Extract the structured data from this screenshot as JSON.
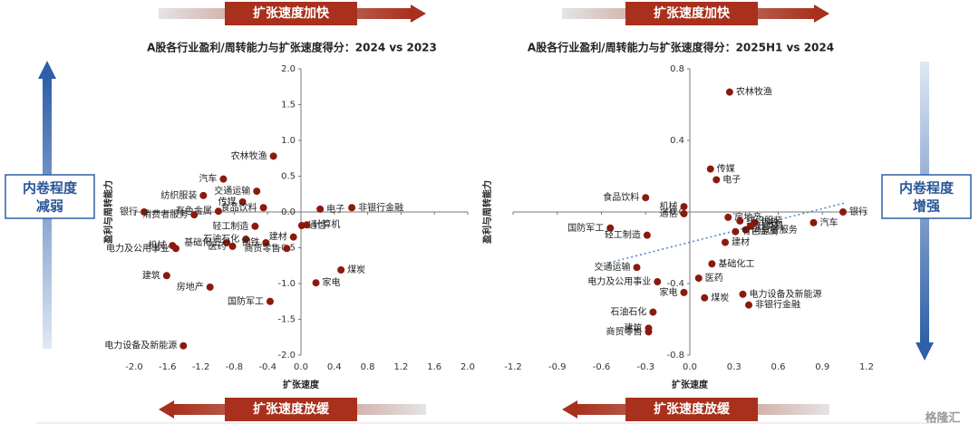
{
  "banners": {
    "top": "扩张速度加快",
    "bottom": "扩张速度放缓",
    "left": [
      "内卷程度",
      "减弱"
    ],
    "right": [
      "内卷程度",
      "增强"
    ],
    "watermark": "格隆汇"
  },
  "chart_data": [
    {
      "type": "scatter",
      "title": "A股各行业盈利/周转能力与扩张速度得分：2024 vs 2023",
      "xlabel": "扩张速度",
      "ylabel": "盈利与周转能力",
      "color": "#8b1a0e",
      "xlim": [
        -2,
        2
      ],
      "ylim": [
        -2,
        2
      ],
      "xticks": [
        {
          "value": -2,
          "label": "-2.0"
        },
        -1.6,
        -1.2,
        -0.8,
        -0.4,
        {
          "value": 0,
          "label": "0.0"
        },
        0.4,
        0.8,
        1.2,
        1.6,
        {
          "value": 2,
          "label": "2.0"
        }
      ],
      "yticks": [
        {
          "value": 2,
          "label": "2.0"
        },
        1.5,
        {
          "value": 1,
          "label": "1.0"
        },
        0.5,
        {
          "value": 0,
          "label": "0.0"
        },
        -0.5,
        {
          "value": -1,
          "label": "-1.0"
        },
        -1.5,
        {
          "value": -2,
          "label": "-2.0"
        }
      ],
      "labels": [
        "银行",
        "纺织服装",
        "汽车",
        "有色金属",
        "消费者服务",
        "机械",
        "基础化工",
        "电力及公用事业",
        "建筑",
        "房地产",
        "电力设备及新能源",
        "传媒",
        "交通运输",
        "农林牧渔",
        "食品饮料",
        "轻工制造",
        "石油石化",
        "医药",
        "通信",
        "计算机",
        "电子",
        "非银行金融",
        "建材",
        "钢铁",
        "商贸零售",
        "国防军工",
        "煤炭",
        "家电"
      ],
      "x": [
        -1.88,
        -1.17,
        -0.93,
        -0.99,
        -1.28,
        -1.54,
        -0.89,
        -1.5,
        -1.61,
        -1.09,
        -1.41,
        -0.7,
        -0.53,
        -0.33,
        -0.45,
        -0.55,
        -0.66,
        -0.82,
        0.01,
        0.07,
        0.23,
        0.61,
        -0.09,
        -0.42,
        -0.17,
        -0.37,
        0.48,
        0.18
      ],
      "y": [
        0.0,
        0.23,
        0.46,
        0.01,
        -0.04,
        -0.47,
        -0.43,
        -0.51,
        -0.89,
        -1.05,
        -1.87,
        0.14,
        0.29,
        0.78,
        0.06,
        -0.2,
        -0.38,
        -0.48,
        -0.19,
        -0.18,
        0.04,
        0.06,
        -0.35,
        -0.43,
        -0.51,
        -1.25,
        -0.81,
        -0.99
      ]
    },
    {
      "type": "scatter",
      "title": "A股各行业盈利/周转能力与扩张速度得分：2025H1 vs 2024",
      "xlabel": "扩张速度",
      "ylabel": "盈利与周转能力",
      "color": "#8b1a0e",
      "xlim": [
        -1.2,
        1.2
      ],
      "ylim": [
        -0.8,
        0.8
      ],
      "xticks": [
        -1.2,
        -0.9,
        -0.6,
        -0.3,
        {
          "value": 0,
          "label": "0.0"
        },
        0.3,
        0.6,
        0.9,
        1.2
      ],
      "yticks": [
        0.8,
        0.4,
        {
          "value": 0,
          "label": "0.0"
        },
        -0.4,
        -0.8
      ],
      "labels": [
        "农林牧渔",
        "传媒",
        "电子",
        "机械",
        "食品饮料",
        "通信",
        "房地产",
        "国防军工",
        "轻工制造",
        "交通运输",
        "电力及公用事业",
        "家电",
        "石油石化",
        "建筑",
        "商贸零售",
        "银行",
        "汽车",
        "钢铁",
        "消费者服务",
        "纺织服装",
        "计算机",
        "建材",
        "有色金属",
        "基础化工",
        "医药",
        "电力设备及新能源",
        "煤炭",
        "非银行金融"
      ],
      "x": [
        0.27,
        0.14,
        0.18,
        -0.04,
        -0.3,
        -0.04,
        0.26,
        -0.54,
        -0.29,
        -0.36,
        -0.22,
        -0.04,
        -0.25,
        -0.28,
        -0.28,
        1.04,
        0.84,
        0.44,
        0.38,
        0.34,
        0.41,
        0.24,
        0.31,
        0.15,
        0.06,
        0.36,
        0.1,
        0.4
      ],
      "y": [
        0.67,
        0.24,
        0.18,
        0.03,
        0.08,
        -0.01,
        -0.03,
        -0.09,
        -0.13,
        -0.31,
        -0.39,
        -0.45,
        -0.56,
        -0.65,
        -0.67,
        0.0,
        -0.06,
        -0.06,
        -0.1,
        -0.05,
        -0.08,
        -0.17,
        -0.11,
        -0.29,
        -0.37,
        -0.46,
        -0.48,
        -0.52
      ]
    }
  ]
}
